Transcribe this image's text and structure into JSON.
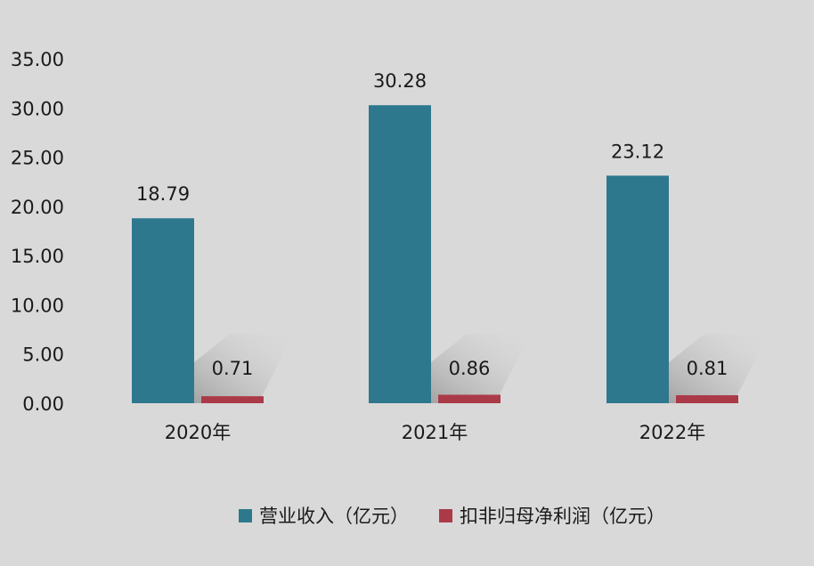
{
  "chart_data": {
    "type": "bar",
    "categories": [
      "2020年",
      "2021年",
      "2022年"
    ],
    "series": [
      {
        "name": "营业收入（亿元）",
        "values": [
          18.79,
          30.28,
          23.12
        ],
        "labels": [
          "18.79",
          "30.28",
          "23.12"
        ],
        "color": "#2e788e"
      },
      {
        "name": "扣非归母净利润（亿元）",
        "values": [
          0.71,
          0.86,
          0.81
        ],
        "labels": [
          "0.71",
          "0.86",
          "0.81"
        ],
        "color": "#ab3a48"
      }
    ],
    "ylim": [
      0,
      35
    ],
    "yticks": [
      "0.00",
      "5.00",
      "10.00",
      "15.00",
      "20.00",
      "25.00",
      "30.00",
      "35.00"
    ],
    "title": "",
    "xlabel": "",
    "ylabel": "",
    "grid": false,
    "legend": "bottom",
    "background": "#d9d9d9"
  }
}
